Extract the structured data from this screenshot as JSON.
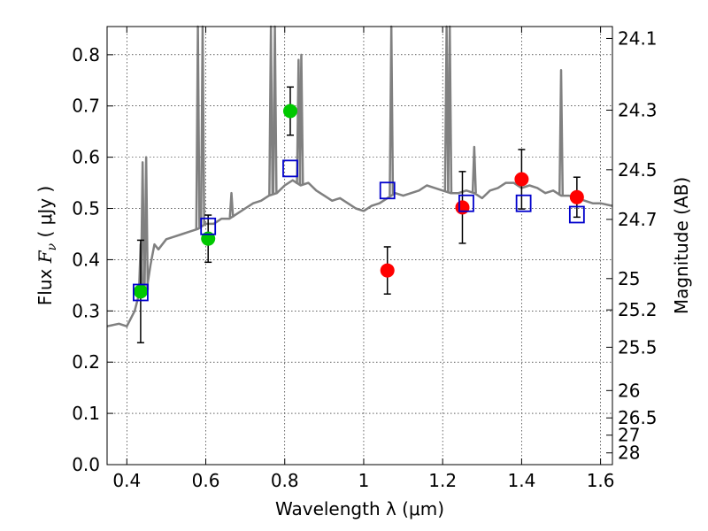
{
  "chart_data": {
    "type": "scatter",
    "xlabel": "Wavelength  λ (μm)",
    "ylabel_left": "Flux  F_ν  ( μJy )",
    "ylabel_right": "Magnitude (AB)",
    "xlim": [
      0.35,
      1.63
    ],
    "ylim": [
      0.0,
      0.855
    ],
    "x_ticks": [
      0.4,
      0.6,
      0.8,
      1.0,
      1.2,
      1.4,
      1.6
    ],
    "x_tick_labels": [
      "0.4",
      "0.6",
      "0.8",
      "1",
      "1.2",
      "1.4",
      "1.6"
    ],
    "y_ticks": [
      0.0,
      0.1,
      0.2,
      0.3,
      0.4,
      0.5,
      0.6,
      0.7,
      0.8
    ],
    "y_tick_labels": [
      "0.0",
      "0.1",
      "0.2",
      "0.3",
      "0.4",
      "0.5",
      "0.6",
      "0.7",
      "0.8"
    ],
    "mag_ticks": [
      "24.1",
      "24.3",
      "24.5",
      "24.7",
      "25",
      "25.2",
      "25.5",
      "26",
      "26.5",
      "27",
      "28"
    ],
    "grid": true,
    "series": [
      {
        "name": "green observed",
        "color": "#00c800",
        "points": [
          {
            "x": 0.435,
            "y": 0.338,
            "err": 0.1
          },
          {
            "x": 0.606,
            "y": 0.441,
            "err": 0.046
          },
          {
            "x": 0.814,
            "y": 0.69,
            "err": 0.047
          }
        ]
      },
      {
        "name": "red observed",
        "color": "#ff0000",
        "points": [
          {
            "x": 1.06,
            "y": 0.379,
            "err": 0.046
          },
          {
            "x": 1.25,
            "y": 0.502,
            "err": 0.07
          },
          {
            "x": 1.4,
            "y": 0.557,
            "err": 0.058
          },
          {
            "x": 1.54,
            "y": 0.522,
            "err": 0.039
          }
        ]
      },
      {
        "name": "model photometry",
        "color": "#0000cc",
        "points": [
          {
            "x": 0.435,
            "y": 0.336
          },
          {
            "x": 0.606,
            "y": 0.465
          },
          {
            "x": 0.814,
            "y": 0.578
          },
          {
            "x": 1.06,
            "y": 0.535
          },
          {
            "x": 1.26,
            "y": 0.51
          },
          {
            "x": 1.405,
            "y": 0.51
          },
          {
            "x": 1.54,
            "y": 0.488
          }
        ]
      }
    ],
    "spectrum": {
      "name": "model spectrum",
      "color": "#808080",
      "points": [
        [
          0.35,
          0.27
        ],
        [
          0.38,
          0.275
        ],
        [
          0.4,
          0.27
        ],
        [
          0.42,
          0.3
        ],
        [
          0.43,
          0.33
        ],
        [
          0.44,
          0.35
        ],
        [
          0.45,
          0.34
        ],
        [
          0.46,
          0.39
        ],
        [
          0.47,
          0.43
        ],
        [
          0.48,
          0.42
        ],
        [
          0.5,
          0.44
        ],
        [
          0.52,
          0.445
        ],
        [
          0.54,
          0.45
        ],
        [
          0.56,
          0.455
        ],
        [
          0.58,
          0.46
        ],
        [
          0.6,
          0.47
        ],
        [
          0.62,
          0.47
        ],
        [
          0.64,
          0.48
        ],
        [
          0.66,
          0.48
        ],
        [
          0.68,
          0.49
        ],
        [
          0.7,
          0.5
        ],
        [
          0.72,
          0.51
        ],
        [
          0.74,
          0.515
        ],
        [
          0.76,
          0.525
        ],
        [
          0.78,
          0.53
        ],
        [
          0.8,
          0.545
        ],
        [
          0.82,
          0.555
        ],
        [
          0.84,
          0.545
        ],
        [
          0.86,
          0.55
        ],
        [
          0.88,
          0.535
        ],
        [
          0.9,
          0.525
        ],
        [
          0.92,
          0.515
        ],
        [
          0.94,
          0.52
        ],
        [
          0.96,
          0.51
        ],
        [
          0.98,
          0.5
        ],
        [
          1.0,
          0.495
        ],
        [
          1.02,
          0.505
        ],
        [
          1.04,
          0.51
        ],
        [
          1.06,
          0.52
        ],
        [
          1.08,
          0.53
        ],
        [
          1.1,
          0.525
        ],
        [
          1.12,
          0.53
        ],
        [
          1.14,
          0.535
        ],
        [
          1.16,
          0.545
        ],
        [
          1.18,
          0.54
        ],
        [
          1.2,
          0.535
        ],
        [
          1.22,
          0.53
        ],
        [
          1.24,
          0.53
        ],
        [
          1.26,
          0.535
        ],
        [
          1.28,
          0.53
        ],
        [
          1.3,
          0.52
        ],
        [
          1.32,
          0.535
        ],
        [
          1.34,
          0.54
        ],
        [
          1.36,
          0.55
        ],
        [
          1.38,
          0.55
        ],
        [
          1.4,
          0.54
        ],
        [
          1.42,
          0.545
        ],
        [
          1.44,
          0.54
        ],
        [
          1.46,
          0.53
        ],
        [
          1.48,
          0.535
        ],
        [
          1.5,
          0.525
        ],
        [
          1.52,
          0.525
        ],
        [
          1.54,
          0.52
        ],
        [
          1.56,
          0.515
        ],
        [
          1.58,
          0.51
        ],
        [
          1.6,
          0.51
        ],
        [
          1.63,
          0.505
        ]
      ],
      "emission_lines": [
        {
          "x": 0.435,
          "y": 0.43
        },
        {
          "x": 0.44,
          "y": 0.59
        },
        {
          "x": 0.449,
          "y": 0.6
        },
        {
          "x": 0.58,
          "y": 0.855
        },
        {
          "x": 0.592,
          "y": 0.855
        },
        {
          "x": 0.665,
          "y": 0.53
        },
        {
          "x": 0.765,
          "y": 0.855
        },
        {
          "x": 0.775,
          "y": 0.855
        },
        {
          "x": 0.835,
          "y": 0.79
        },
        {
          "x": 0.842,
          "y": 0.8
        },
        {
          "x": 1.07,
          "y": 0.855
        },
        {
          "x": 1.21,
          "y": 0.855
        },
        {
          "x": 1.218,
          "y": 0.855
        },
        {
          "x": 1.28,
          "y": 0.62
        },
        {
          "x": 1.5,
          "y": 0.77
        }
      ]
    }
  }
}
